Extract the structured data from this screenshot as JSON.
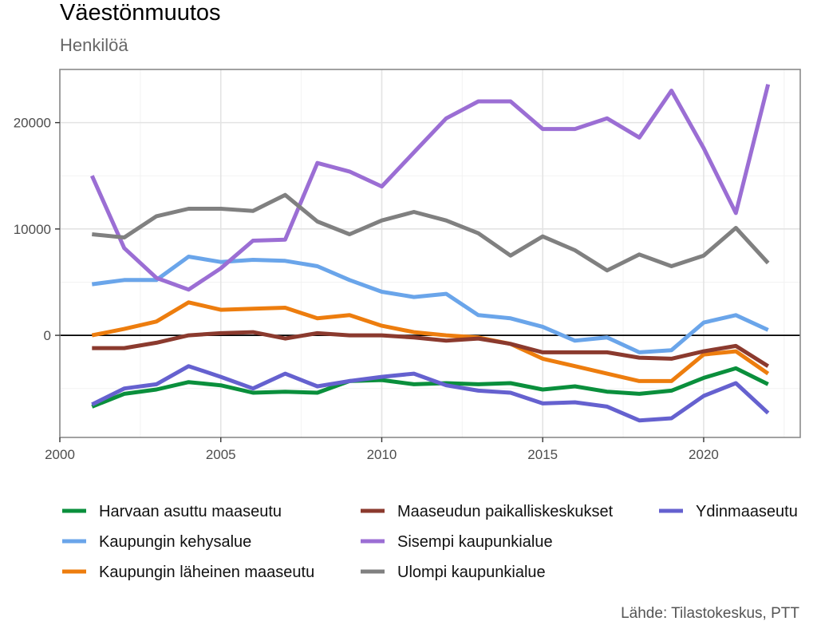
{
  "title": "Väestönmuutos",
  "subtitle": "Henkilöä",
  "caption": "Lähde: Tilastokeskus, PTT",
  "chart_data": {
    "type": "line",
    "xlim": [
      2000,
      2023
    ],
    "ylim": [
      -9600,
      25000
    ],
    "x_ticks": [
      2000,
      2005,
      2010,
      2015,
      2020
    ],
    "y_ticks": [
      0,
      10000,
      20000
    ],
    "grid": true,
    "zero_line": true,
    "legend_position": "bottom",
    "x": [
      2001,
      2002,
      2003,
      2004,
      2005,
      2006,
      2007,
      2008,
      2009,
      2010,
      2011,
      2012,
      2013,
      2014,
      2015,
      2016,
      2017,
      2018,
      2019,
      2020,
      2021,
      2022
    ],
    "series": [
      {
        "name": "Harvaan asuttu maaseutu",
        "color": "#0a8f3c",
        "values": [
          -6700,
          -5500,
          -5100,
          -4400,
          -4700,
          -5400,
          -5300,
          -5400,
          -4300,
          -4200,
          -4600,
          -4500,
          -4600,
          -4500,
          -5100,
          -4800,
          -5300,
          -5500,
          -5200,
          -4000,
          -3100,
          -4600
        ]
      },
      {
        "name": "Kaupungin kehysalue",
        "color": "#6aa5ea",
        "values": [
          4800,
          5200,
          5200,
          7400,
          6900,
          7100,
          7000,
          6500,
          5200,
          4100,
          3600,
          3900,
          1900,
          1600,
          800,
          -500,
          -200,
          -1600,
          -1400,
          1200,
          1900,
          500
        ]
      },
      {
        "name": "Kaupungin läheinen maaseutu",
        "color": "#ed7d0e",
        "values": [
          0,
          600,
          1300,
          3100,
          2400,
          2500,
          2600,
          1600,
          1900,
          900,
          300,
          0,
          -200,
          -800,
          -2200,
          -2900,
          -3600,
          -4300,
          -4300,
          -1800,
          -1500,
          -3600
        ]
      },
      {
        "name": "Maaseudun paikalliskeskukset",
        "color": "#8b3a2e",
        "values": [
          -1200,
          -1200,
          -700,
          0,
          200,
          300,
          -300,
          200,
          0,
          0,
          -200,
          -500,
          -300,
          -800,
          -1600,
          -1600,
          -1600,
          -2100,
          -2200,
          -1500,
          -1000,
          -2900
        ]
      },
      {
        "name": "Sisempi kaupunkialue",
        "color": "#9b6ed4",
        "values": [
          15000,
          8200,
          5400,
          4300,
          6300,
          8900,
          9000,
          16200,
          15400,
          14000,
          17200,
          20400,
          22000,
          22000,
          19400,
          19400,
          20400,
          18600,
          23000,
          17600,
          11500,
          23600
        ]
      },
      {
        "name": "Ulompi kaupunkialue",
        "color": "#808080",
        "values": [
          9500,
          9200,
          11200,
          11900,
          11900,
          11700,
          13200,
          10700,
          9500,
          10800,
          11600,
          10800,
          9600,
          7500,
          9300,
          8000,
          6100,
          7600,
          6500,
          7500,
          10100,
          6800
        ]
      },
      {
        "name": "Ydinmaaseutu",
        "color": "#6561cf",
        "values": [
          -6500,
          -5000,
          -4600,
          -2900,
          -3900,
          -5000,
          -3600,
          -4800,
          -4300,
          -3900,
          -3600,
          -4700,
          -5200,
          -5400,
          -6400,
          -6300,
          -6700,
          -8000,
          -7800,
          -5700,
          -4500,
          -7300
        ]
      }
    ]
  }
}
